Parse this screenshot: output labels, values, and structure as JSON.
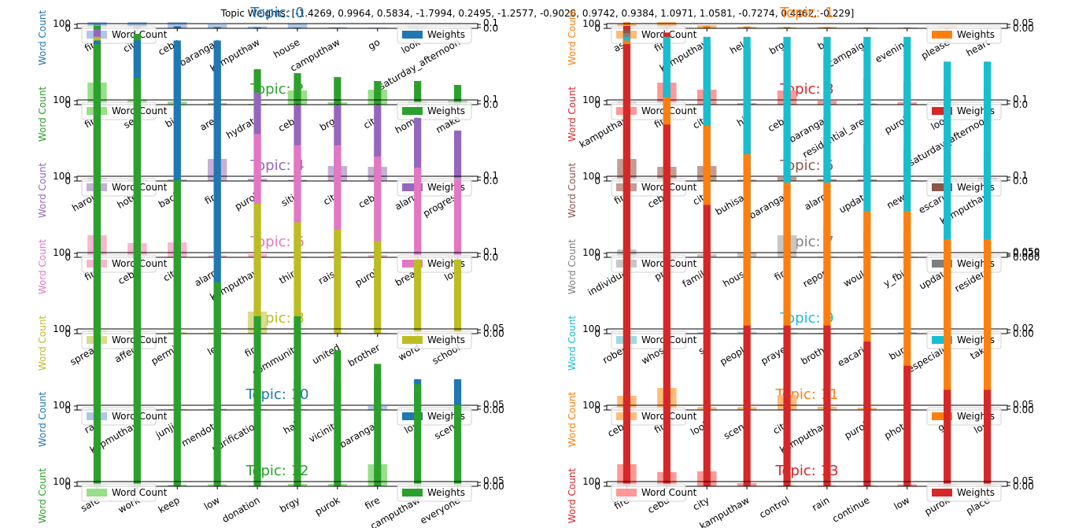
{
  "figure": {
    "suptitle": "Topic Weights: [-1.4269, 0.9964, 0.5834, -1.7994, 0.2495, -1.2577, -0.9028, 0.9742, 0.9384, 1.0971, 1.0581, -0.7274, 0.4462, -0.229]"
  },
  "chart_data": [
    {
      "type": "bar",
      "title": "Topic: 0",
      "color": "#1f77b4",
      "light_color": "#aec7e8",
      "ylabel": "Word Count",
      "y2_ticks": [
        "0.0",
        "0.1"
      ],
      "categories": [
        "fire",
        "city",
        "cebu",
        "barangay",
        "kamputhaw",
        "house",
        "camputhaw",
        "go",
        "look",
        "saturday_afternoon"
      ],
      "series": [
        {
          "name": "Word Count",
          "values": [
            140,
            95,
            90,
            25,
            12,
            28,
            8,
            5,
            18,
            3
          ]
        },
        {
          "name": "Weights",
          "values": [
            0.06,
            0.04,
            0.035,
            0.02,
            0.015,
            0.012,
            0.008,
            0.006,
            0.006,
            0.005
          ]
        }
      ]
    },
    {
      "type": "bar",
      "title": "Topic: 1",
      "color": "#ff7f0e",
      "light_color": "#ffbb78",
      "ylabel": "Word Count",
      "y2_ticks": [
        "0.00",
        "0.05"
      ],
      "categories": [
        "ask",
        "fire",
        "kamputhaw",
        "help",
        "brgy",
        "be",
        "campaign",
        "evening",
        "please",
        "heart"
      ],
      "series": [
        {
          "name": "Word Count",
          "values": [
            30,
            140,
            20,
            10,
            8,
            10,
            5,
            5,
            12,
            5
          ]
        },
        {
          "name": "Weights",
          "values": [
            0.08,
            0.035,
            0.03,
            0.025,
            0.018,
            0.015,
            0.012,
            0.012,
            0.01,
            0.008
          ]
        }
      ]
    },
    {
      "type": "bar",
      "title": "Topic: 2",
      "color": "#2ca02c",
      "light_color": "#98df8a",
      "ylabel": "Word Count",
      "y2_ticks": [
        "0.0",
        "0.1"
      ],
      "categories": [
        "fire",
        "see",
        "big",
        "area",
        "hydrate",
        "cebu",
        "brgy",
        "city",
        "home",
        "make"
      ],
      "series": [
        {
          "name": "Word Count",
          "values": [
            140,
            30,
            20,
            10,
            5,
            90,
            15,
            95,
            20,
            25
          ]
        },
        {
          "name": "Weights",
          "values": [
            0.1,
            0.09,
            0.07,
            0.05,
            0.045,
            0.04,
            0.035,
            0.03,
            0.03,
            0.025
          ]
        }
      ]
    },
    {
      "type": "bar",
      "title": "Topic: 3",
      "color": "#d62728",
      "light_color": "#ff9896",
      "ylabel": "Word Count",
      "y2_ticks": [
        "0.0",
        "0.1"
      ],
      "categories": [
        "kamputhaw",
        "fire",
        "city",
        "hit",
        "cebu",
        "barangay",
        "residential_area",
        "purok",
        "look",
        "saturday_afternoon"
      ],
      "series": [
        {
          "name": "Word Count",
          "values": [
            20,
            140,
            95,
            10,
            90,
            25,
            8,
            15,
            18,
            5
          ]
        },
        {
          "name": "Weights",
          "values": [
            0.12,
            0.11,
            0.09,
            0.085,
            0.08,
            0.075,
            0.04,
            0.035,
            0.03,
            0.025
          ]
        }
      ]
    },
    {
      "type": "bar",
      "title": "Topic: 4",
      "color": "#9467bd",
      "light_color": "#c5b0d5",
      "ylabel": "Word Count",
      "y2_ticks": [
        "0.0",
        "0.1"
      ],
      "categories": [
        "harold",
        "hotel",
        "back",
        "fire",
        "purok",
        "sitio",
        "city",
        "cebu",
        "alarm",
        "progress"
      ],
      "series": [
        {
          "name": "Word Count",
          "values": [
            20,
            10,
            10,
            140,
            15,
            8,
            95,
            90,
            12,
            5
          ]
        },
        {
          "name": "Weights",
          "values": [
            0.12,
            0.11,
            0.1,
            0.09,
            0.07,
            0.06,
            0.06,
            0.06,
            0.05,
            0.04
          ]
        }
      ]
    },
    {
      "type": "bar",
      "title": "Topic: 5",
      "color": "#8c564b",
      "light_color": "#c49c94",
      "ylabel": "Word Count",
      "y2_ticks": [
        "0.0",
        "0.1"
      ],
      "categories": [
        "fire",
        "cebu",
        "city",
        "buhisan",
        "barangay",
        "alarm",
        "update",
        "news",
        "escario",
        "kamputhaw"
      ],
      "series": [
        {
          "name": "Word Count",
          "values": [
            140,
            90,
            95,
            8,
            25,
            12,
            10,
            5,
            15,
            20
          ]
        },
        {
          "name": "Weights",
          "values": [
            0.12,
            0.09,
            0.07,
            0.06,
            0.05,
            0.035,
            0.03,
            0.025,
            0.02,
            0.02
          ]
        }
      ]
    },
    {
      "type": "bar",
      "title": "Topic: 6",
      "color": "#e377c2",
      "light_color": "#f7b6d2",
      "ylabel": "Word Count",
      "y2_ticks": [
        "0.0",
        "0.1"
      ],
      "categories": [
        "fire",
        "cebu",
        "city",
        "alarm",
        "kamputhaw",
        "third",
        "raise",
        "purok",
        "break",
        "low"
      ],
      "series": [
        {
          "name": "Word Count",
          "values": [
            140,
            90,
            95,
            12,
            20,
            5,
            8,
            15,
            10,
            12
          ]
        },
        {
          "name": "Weights",
          "values": [
            0.08,
            0.07,
            0.065,
            0.06,
            0.055,
            0.05,
            0.05,
            0.045,
            0.04,
            0.035
          ]
        }
      ]
    },
    {
      "type": "bar",
      "title": "Topic: 7",
      "color": "#7f7f7f",
      "light_color": "#c7c7c7",
      "ylabel": "Word Count",
      "y2_ticks": [
        "0.000",
        "0.025",
        "0.050"
      ],
      "categories": [
        "individual",
        "pm",
        "family",
        "house",
        "fire",
        "report",
        "would",
        "y_fbid",
        "update",
        "resident"
      ],
      "series": [
        {
          "name": "Word Count",
          "values": [
            50,
            10,
            20,
            28,
            140,
            5,
            8,
            5,
            10,
            12
          ]
        },
        {
          "name": "Weights",
          "values": [
            0.09,
            0.085,
            0.085,
            0.075,
            0.02,
            0.012,
            0.01,
            0.009,
            0.009,
            0.009
          ]
        }
      ]
    },
    {
      "type": "bar",
      "title": "Topic: 8",
      "color": "#bcbd22",
      "light_color": "#dbdb8d",
      "ylabel": "Word Count",
      "y2_ticks": [
        "0.00",
        "0.05"
      ],
      "categories": [
        "spread",
        "affect",
        "permit",
        "let",
        "fire",
        "community",
        "united",
        "brother",
        "word",
        "school"
      ],
      "series": [
        {
          "name": "Word Count",
          "values": [
            20,
            15,
            10,
            8,
            140,
            5,
            5,
            5,
            8,
            10
          ]
        },
        {
          "name": "Weights",
          "values": [
            0.08,
            0.075,
            0.065,
            0.045,
            0.035,
            0.03,
            0.028,
            0.025,
            0.02,
            0.02
          ]
        }
      ]
    },
    {
      "type": "bar",
      "title": "Topic: 9",
      "color": "#17becf",
      "light_color": "#9edae5",
      "ylabel": "Word Count",
      "y2_ticks": [
        "0.00",
        "0.02"
      ],
      "categories": [
        "robert",
        "whose",
        "so",
        "people",
        "prayer",
        "brotha",
        "eacario",
        "burn",
        "especially",
        "take"
      ],
      "series": [
        {
          "name": "Word Count",
          "values": [
            15,
            5,
            10,
            12,
            8,
            5,
            5,
            10,
            5,
            12
          ]
        },
        {
          "name": "Weights",
          "values": [
            0.024,
            0.024,
            0.024,
            0.024,
            0.024,
            0.024,
            0.024,
            0.024,
            0.022,
            0.022
          ]
        }
      ]
    },
    {
      "type": "bar",
      "title": "Topic: 10",
      "color": "#1f77b4",
      "light_color": "#aec7e8",
      "ylabel": "Word Count",
      "y2_ticks": [
        "0.00",
        "0.05"
      ],
      "categories": [
        "rag",
        "kapmuthaw",
        "junjie",
        "mendota",
        "purification",
        "hall",
        "vicinity",
        "barangay",
        "low",
        "scene"
      ],
      "series": [
        {
          "name": "Word Count",
          "values": [
            10,
            5,
            5,
            8,
            5,
            5,
            5,
            25,
            12,
            18
          ]
        },
        {
          "name": "Weights",
          "values": [
            0.06,
            0.06,
            0.06,
            0.06,
            0.005,
            0.005,
            0.005,
            0.005,
            0.005,
            0.005
          ]
        }
      ]
    },
    {
      "type": "bar",
      "title": "Topic: 11",
      "color": "#ff7f0e",
      "light_color": "#ffbb78",
      "ylabel": "Word Count",
      "y2_ticks": [
        "0.00",
        "0.05"
      ],
      "categories": [
        "cebu",
        "fire",
        "look",
        "scene",
        "city",
        "kamputhaw",
        "purok",
        "photo",
        "go",
        "low"
      ],
      "series": [
        {
          "name": "Word Count",
          "values": [
            90,
            140,
            18,
            18,
            95,
            20,
            15,
            5,
            5,
            12
          ]
        },
        {
          "name": "Weights",
          "values": [
            0.065,
            0.055,
            0.05,
            0.045,
            0.04,
            0.04,
            0.035,
            0.035,
            0.03,
            0.03
          ]
        }
      ]
    },
    {
      "type": "bar",
      "title": "Topic: 12",
      "color": "#2ca02c",
      "light_color": "#98df8a",
      "ylabel": "Word Count",
      "y2_ticks": [
        "0.00",
        "0.05"
      ],
      "categories": [
        "safe",
        "work",
        "keep",
        "low",
        "donation",
        "brgy",
        "purok",
        "fire",
        "camputhaw",
        "everyone"
      ],
      "series": [
        {
          "name": "Word Count",
          "values": [
            10,
            8,
            10,
            12,
            5,
            15,
            15,
            140,
            8,
            5
          ]
        },
        {
          "name": "Weights",
          "values": [
            0.065,
            0.06,
            0.045,
            0.03,
            0.025,
            0.025,
            0.02,
            0.018,
            0.015,
            0.012
          ]
        }
      ]
    },
    {
      "type": "bar",
      "title": "Topic: 13",
      "color": "#d62728",
      "light_color": "#ff9896",
      "ylabel": "Word Count",
      "y2_ticks": [
        "0.00",
        "0.05"
      ],
      "categories": [
        "fire",
        "cebu",
        "city",
        "kamputhaw",
        "control",
        "rain",
        "continue",
        "low",
        "purok",
        "place"
      ],
      "series": [
        {
          "name": "Word Count",
          "values": [
            140,
            90,
            95,
            20,
            5,
            5,
            5,
            12,
            15,
            8
          ]
        },
        {
          "name": "Weights",
          "values": [
            0.055,
            0.045,
            0.035,
            0.02,
            0.02,
            0.02,
            0.018,
            0.015,
            0.012,
            0.012
          ]
        }
      ]
    }
  ]
}
